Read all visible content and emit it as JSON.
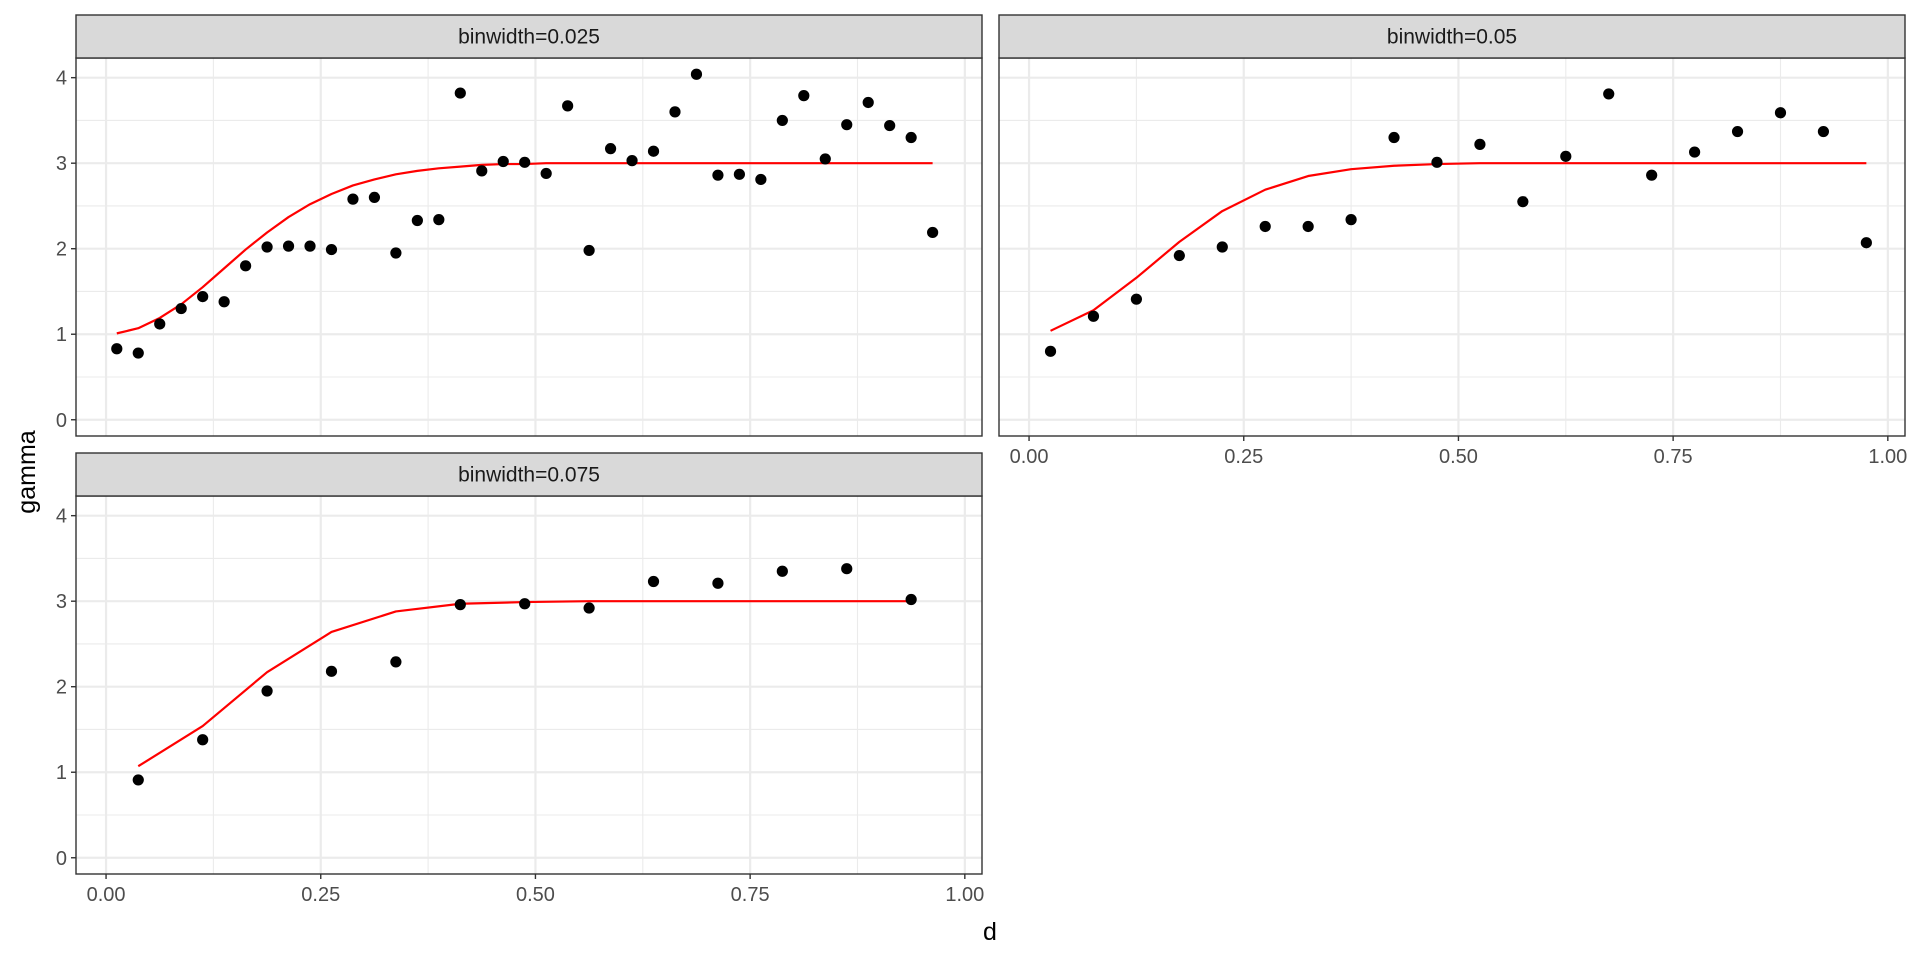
{
  "chart_data": {
    "type": "scatter",
    "xlabel": "d",
    "ylabel": "gamma",
    "xlim": [
      -0.035,
      1.02
    ],
    "ylim": [
      -0.19,
      4.23
    ],
    "xticks": [
      0.0,
      0.25,
      0.5,
      0.75,
      1.0
    ],
    "xtick_labels": [
      "0.00",
      "0.25",
      "0.50",
      "0.75",
      "1.00"
    ],
    "yticks": [
      0,
      1,
      2,
      3,
      4
    ],
    "ytick_labels": [
      "0",
      "1",
      "2",
      "3",
      "4"
    ],
    "grid": true,
    "colors": {
      "points": "#000000",
      "curve": "#ff0000",
      "strip_fill": "#d9d9d9",
      "grid": "#ebebeb",
      "border": "#333333"
    },
    "panels": [
      {
        "strip": "binwidth=0.025",
        "points": {
          "x": [
            0.0125,
            0.0375,
            0.0625,
            0.0875,
            0.1125,
            0.1375,
            0.1625,
            0.1875,
            0.2125,
            0.2375,
            0.2625,
            0.2875,
            0.3125,
            0.3375,
            0.3625,
            0.3875,
            0.4125,
            0.4375,
            0.4625,
            0.4875,
            0.5125,
            0.5375,
            0.5625,
            0.5875,
            0.6125,
            0.6375,
            0.6625,
            0.6875,
            0.7125,
            0.7375,
            0.7625,
            0.7875,
            0.8125,
            0.8375,
            0.8625,
            0.8875,
            0.9125,
            0.9375,
            0.9625
          ],
          "y": [
            0.83,
            0.78,
            1.12,
            1.3,
            1.44,
            1.38,
            1.8,
            2.02,
            2.03,
            2.03,
            1.99,
            2.58,
            2.6,
            1.95,
            2.33,
            2.34,
            3.82,
            2.91,
            3.02,
            3.01,
            2.88,
            3.67,
            1.98,
            3.17,
            3.03,
            3.14,
            3.6,
            4.04,
            2.86,
            2.87,
            2.81,
            3.5,
            3.79,
            3.05,
            3.45,
            3.71,
            3.44,
            3.3,
            2.19
          ]
        },
        "curve": {
          "x": [
            0.0125,
            0.0375,
            0.0625,
            0.0875,
            0.1125,
            0.1375,
            0.1625,
            0.1875,
            0.2125,
            0.2375,
            0.2625,
            0.2875,
            0.3125,
            0.3375,
            0.3625,
            0.3875,
            0.4125,
            0.4375,
            0.4625,
            0.4875,
            0.5125,
            0.5375,
            0.5625,
            0.5875,
            0.6125,
            0.6375,
            0.6625,
            0.6875,
            0.7125,
            0.7375,
            0.7625,
            0.7875,
            0.8125,
            0.8375,
            0.8625,
            0.8875,
            0.9125,
            0.9375,
            0.9625
          ],
          "y": [
            1.01,
            1.07,
            1.19,
            1.35,
            1.55,
            1.77,
            1.99,
            2.19,
            2.37,
            2.52,
            2.64,
            2.74,
            2.81,
            2.87,
            2.91,
            2.94,
            2.96,
            2.98,
            2.99,
            2.99,
            3.0,
            3.0,
            3.0,
            3.0,
            3.0,
            3.0,
            3.0,
            3.0,
            3.0,
            3.0,
            3.0,
            3.0,
            3.0,
            3.0,
            3.0,
            3.0,
            3.0,
            3.0,
            3.0
          ]
        }
      },
      {
        "strip": "binwidth=0.05",
        "points": {
          "x": [
            0.025,
            0.075,
            0.125,
            0.175,
            0.225,
            0.275,
            0.325,
            0.375,
            0.425,
            0.475,
            0.525,
            0.575,
            0.625,
            0.675,
            0.725,
            0.775,
            0.825,
            0.875,
            0.925,
            0.975
          ],
          "y": [
            0.8,
            1.21,
            1.41,
            1.92,
            2.02,
            2.26,
            2.26,
            2.34,
            3.3,
            3.01,
            3.22,
            2.55,
            3.08,
            3.81,
            2.86,
            3.13,
            3.37,
            3.59,
            3.37,
            2.07
          ]
        },
        "curve": {
          "x": [
            0.025,
            0.075,
            0.125,
            0.175,
            0.225,
            0.275,
            0.325,
            0.375,
            0.425,
            0.475,
            0.525,
            0.575,
            0.625,
            0.675,
            0.725,
            0.775,
            0.825,
            0.875,
            0.925,
            0.975
          ],
          "y": [
            1.04,
            1.28,
            1.66,
            2.08,
            2.44,
            2.69,
            2.85,
            2.93,
            2.97,
            2.99,
            3.0,
            3.0,
            3.0,
            3.0,
            3.0,
            3.0,
            3.0,
            3.0,
            3.0,
            3.0
          ]
        }
      },
      {
        "strip": "binwidth=0.075",
        "points": {
          "x": [
            0.0375,
            0.1125,
            0.1875,
            0.2625,
            0.3375,
            0.4125,
            0.4875,
            0.5625,
            0.6375,
            0.7125,
            0.7875,
            0.8625,
            0.9375
          ],
          "y": [
            0.91,
            1.38,
            1.95,
            2.18,
            2.29,
            2.96,
            2.97,
            2.92,
            3.23,
            3.21,
            3.35,
            3.38,
            3.02
          ]
        },
        "curve": {
          "x": [
            0.0375,
            0.1125,
            0.1875,
            0.2625,
            0.3375,
            0.4125,
            0.4875,
            0.5625,
            0.6375,
            0.7125,
            0.7875,
            0.8625,
            0.9375
          ],
          "y": [
            1.07,
            1.54,
            2.17,
            2.64,
            2.88,
            2.97,
            2.99,
            3.0,
            3.0,
            3.0,
            3.0,
            3.0,
            3.0
          ]
        }
      }
    ]
  }
}
